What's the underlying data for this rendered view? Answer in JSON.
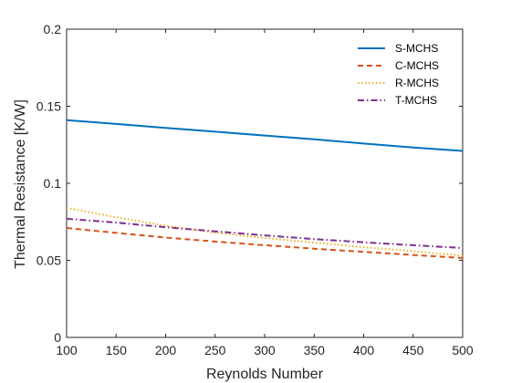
{
  "chart_data": {
    "type": "line",
    "xlabel": "Reynolds Number",
    "ylabel": "Thermal Resistance [K/W]",
    "xlim": [
      100,
      500
    ],
    "ylim": [
      0,
      0.2
    ],
    "xticks": [
      100,
      150,
      200,
      250,
      300,
      350,
      400,
      450,
      500
    ],
    "yticks": [
      0,
      0.05,
      0.1,
      0.15,
      0.2
    ],
    "xtick_labels": [
      "100",
      "150",
      "200",
      "250",
      "300",
      "350",
      "400",
      "450",
      "500"
    ],
    "ytick_labels": [
      "0",
      "0.05",
      "0.1",
      "0.15",
      "0.2"
    ],
    "grid": false,
    "legend_position": "top-right",
    "x": [
      100,
      150,
      200,
      250,
      300,
      350,
      400,
      450,
      500
    ],
    "series": [
      {
        "name": "S-MCHS",
        "color": "#0072BD",
        "dash": "solid",
        "values": [
          0.141,
          0.1385,
          0.136,
          0.1335,
          0.131,
          0.1285,
          0.1258,
          0.1232,
          0.121
        ]
      },
      {
        "name": "C-MCHS",
        "color": "#D95319",
        "dash": "dashed",
        "values": [
          0.071,
          0.0678,
          0.0648,
          0.0622,
          0.0598,
          0.0576,
          0.0555,
          0.0535,
          0.0515
        ]
      },
      {
        "name": "R-MCHS",
        "color": "#EDB120",
        "dash": "dotted",
        "values": [
          0.084,
          0.078,
          0.0725,
          0.068,
          0.0645,
          0.0615,
          0.0585,
          0.056,
          0.053
        ]
      },
      {
        "name": "T-MCHS",
        "color": "#7E2F8E",
        "dash": "dashdot",
        "values": [
          0.077,
          0.0745,
          0.0715,
          0.0688,
          0.0662,
          0.0638,
          0.0617,
          0.0598,
          0.058
        ]
      }
    ]
  }
}
